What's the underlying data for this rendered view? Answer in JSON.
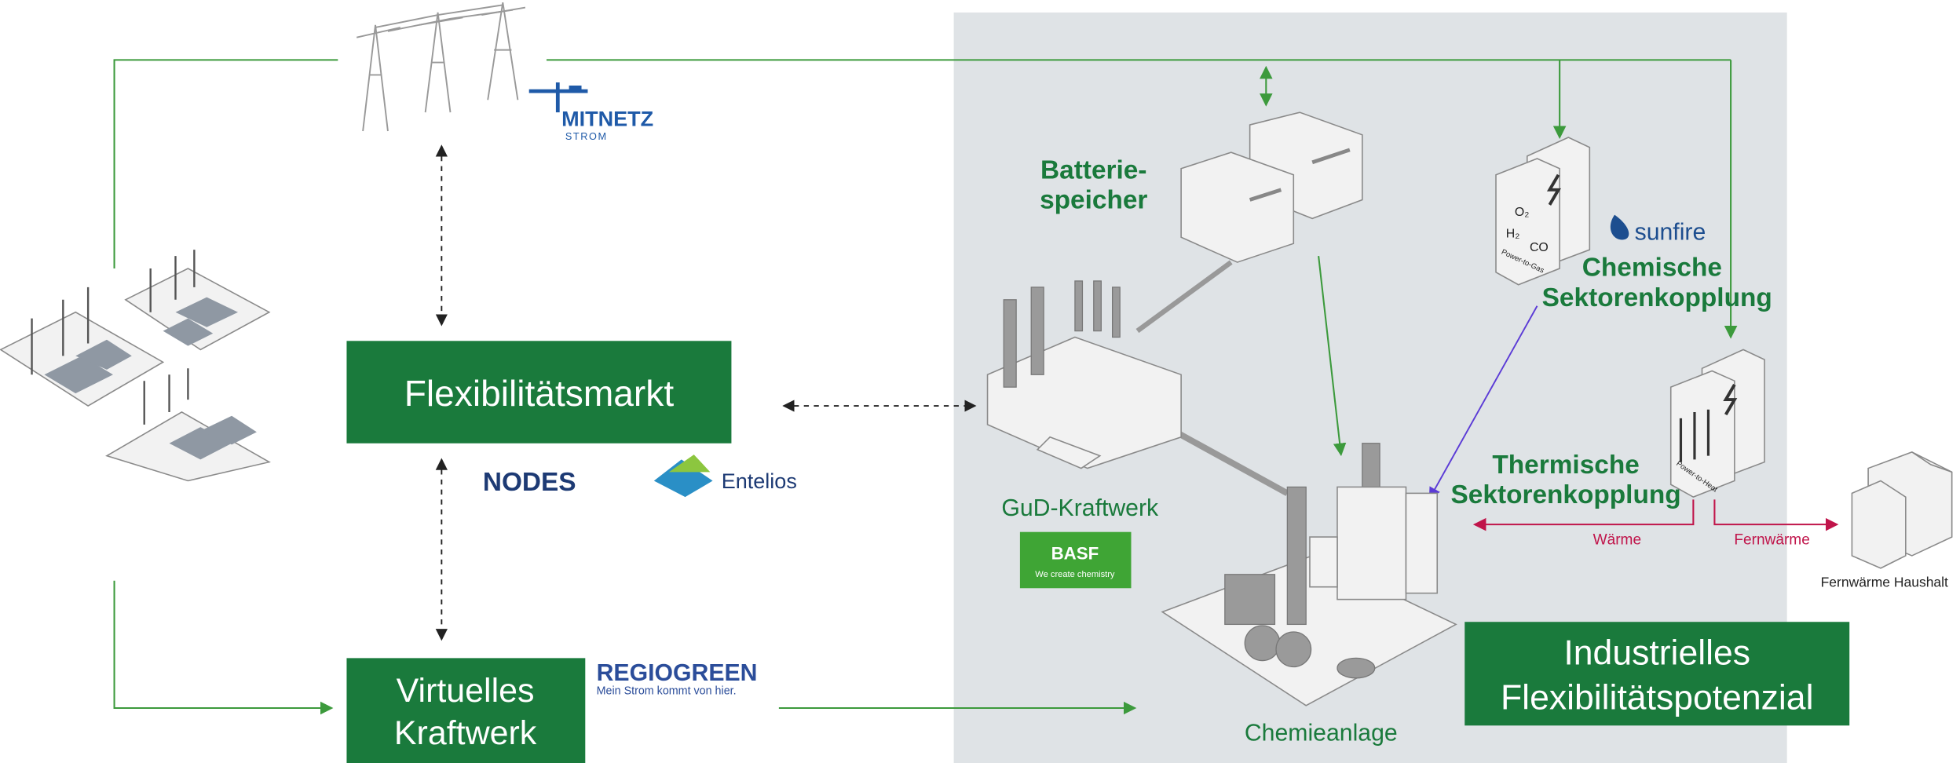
{
  "logos": {
    "mitnetz": "MITNETZ",
    "mitnetz_sub": "STROM",
    "nodes": "NODES",
    "entelios": "Entelios",
    "regiogreen": "REGIOGREEN",
    "regiogreen_slogan": "Mein Strom kommt von hier.",
    "basf": "BASF",
    "basf_slogan": "We create chemistry",
    "sunfire": "sunfire"
  },
  "boxes": {
    "flex_market": "Flexibilitätsmarkt",
    "vpp": [
      "Virtuelles",
      "Kraftwerk"
    ],
    "industrial": [
      "Industrielles",
      "Flexibilitätspotenzial"
    ]
  },
  "labels": {
    "battery": [
      "Batterie-",
      "speicher"
    ],
    "gud": "GuD-Kraftwerk",
    "chem_coupling": [
      "Chemische",
      "Sektorenkopplung"
    ],
    "therm_coupling": [
      "Thermische",
      "Sektorenkopplung"
    ],
    "chem_plant": "Chemieanlage",
    "heat": "Wärme",
    "district_heat": "Fernwärme",
    "household": "Fernwärme Haushalt",
    "p2g": "Power-to-Gas",
    "p2h": "Power-to-Heat",
    "o2": "O₂",
    "h2": "H₂",
    "co": "CO"
  }
}
